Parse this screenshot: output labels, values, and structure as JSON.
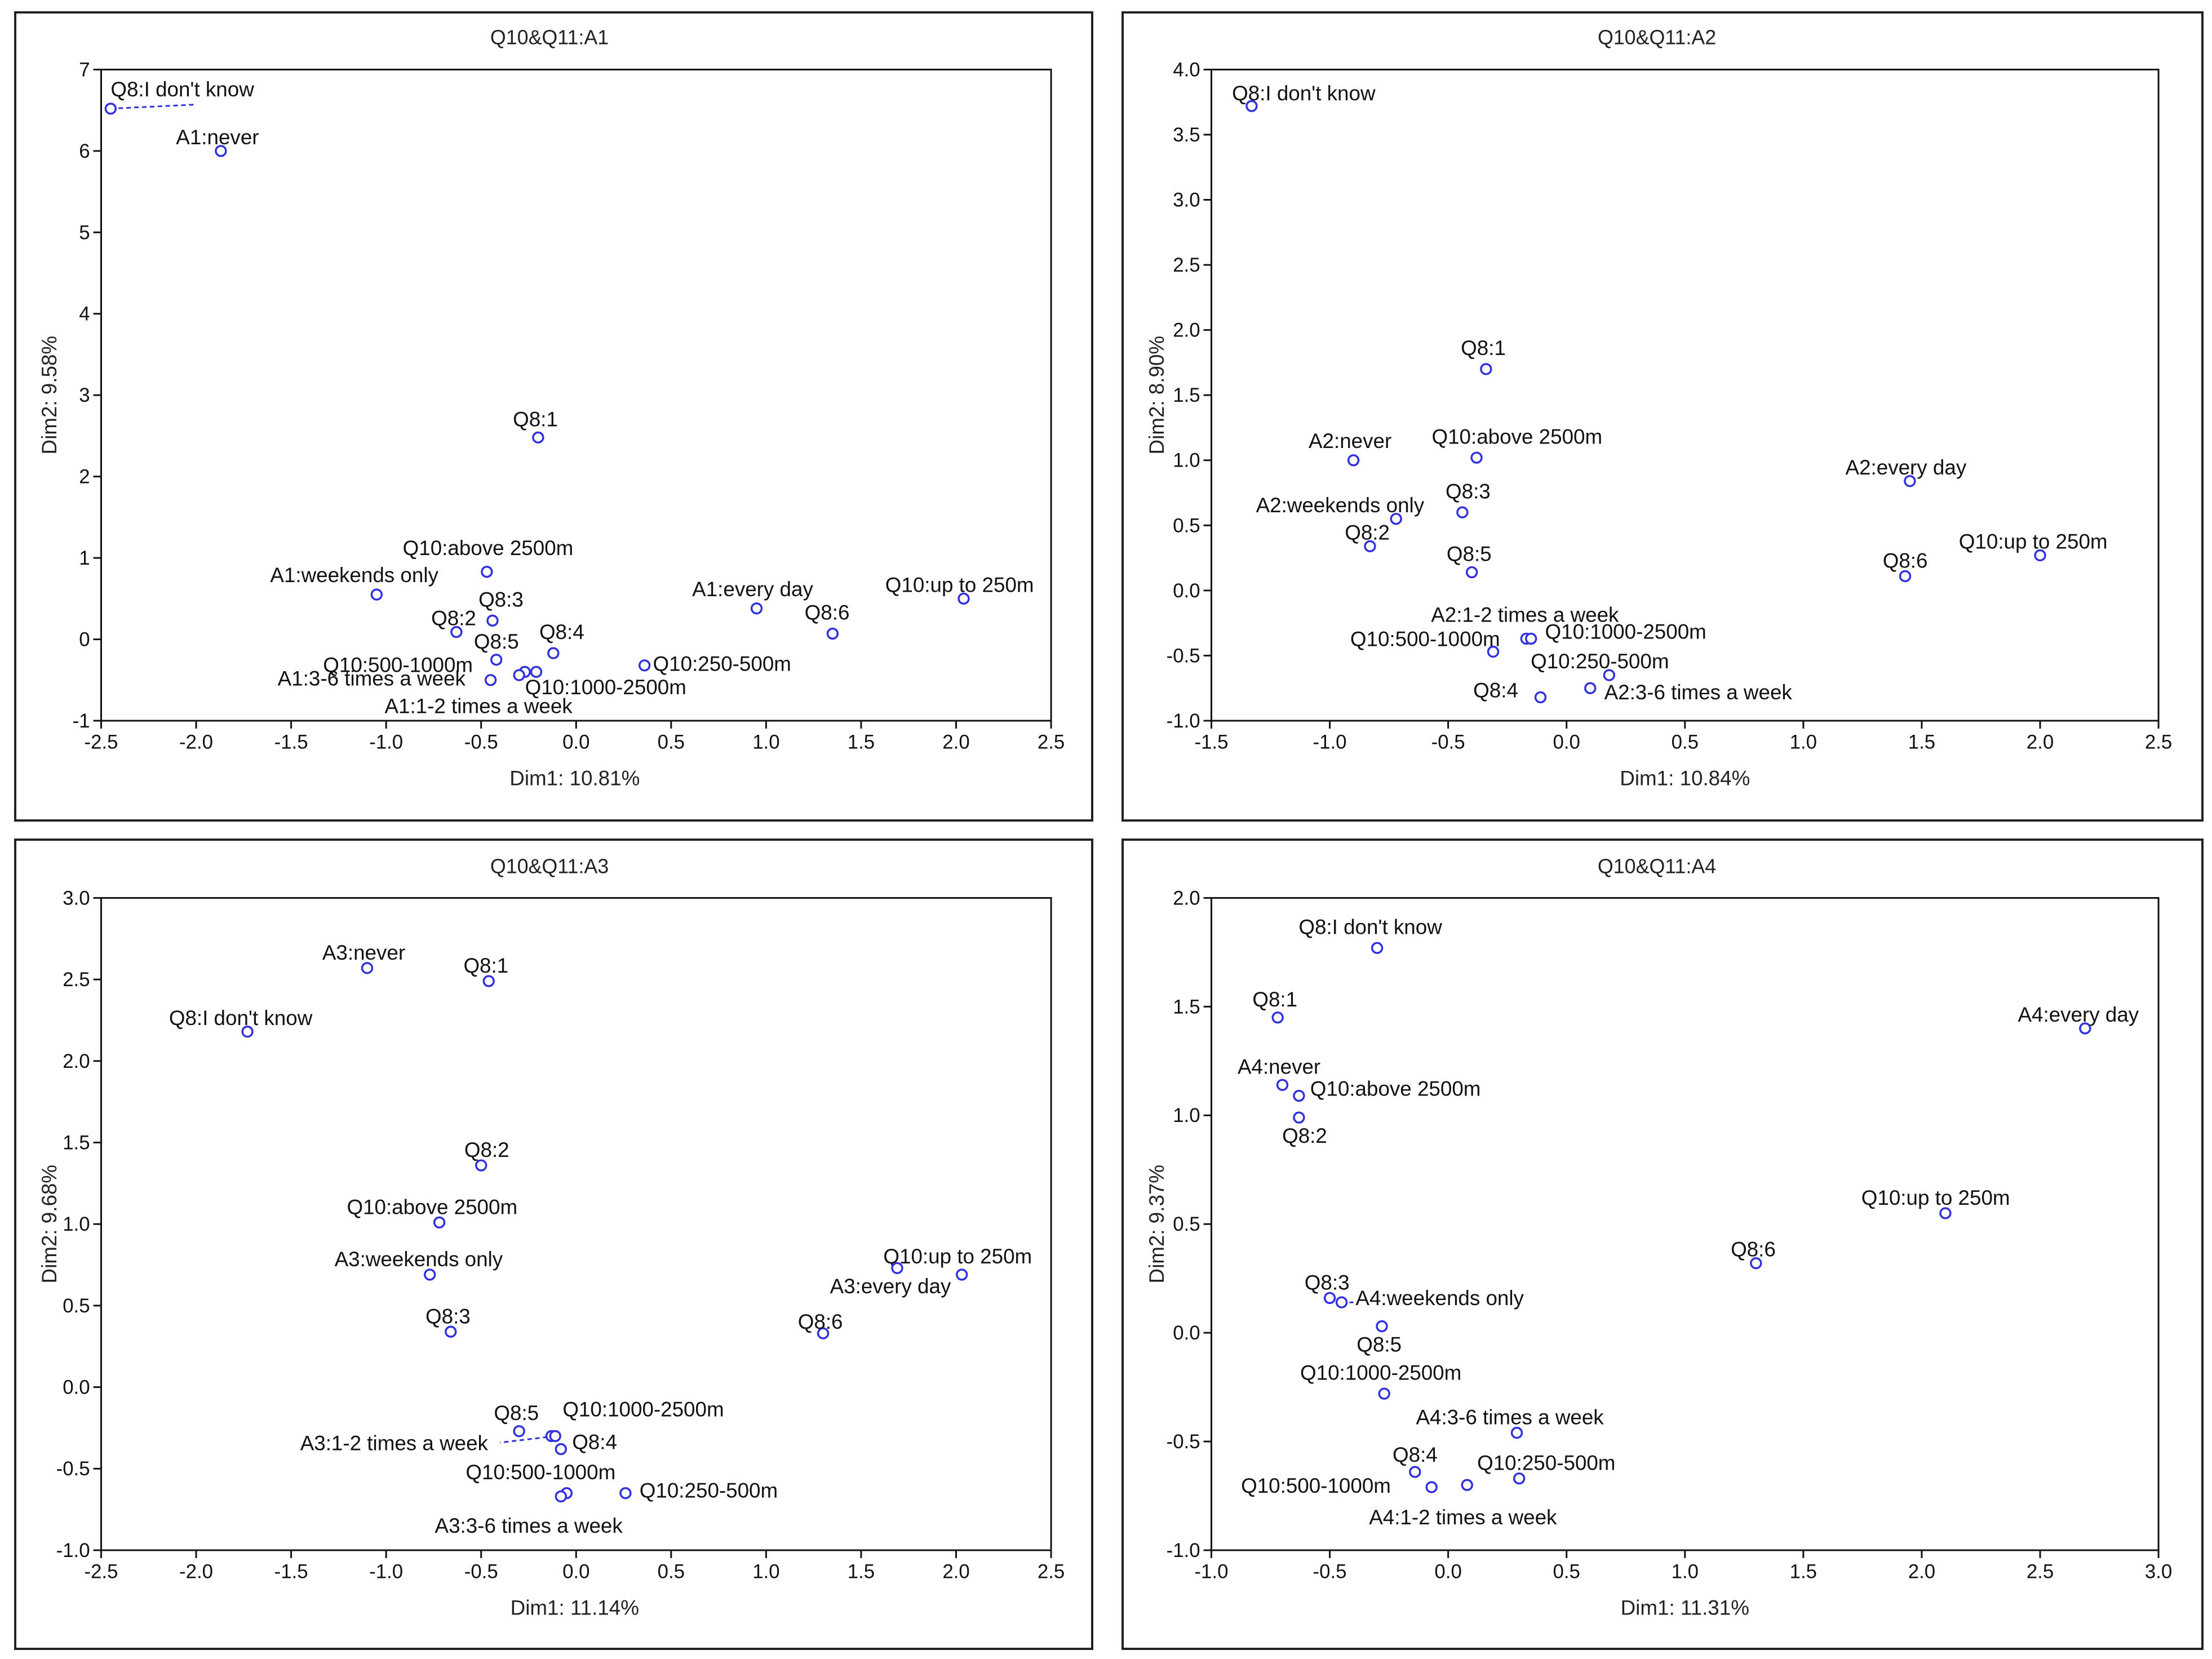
{
  "chart_data": [
    {
      "type": "scatter",
      "title": "Q10&Q11:A1",
      "xlabel": "Dim1: 10.81%",
      "ylabel": "Dim2: 9.58%",
      "xlim": [
        -2.5,
        2.5
      ],
      "ylim": [
        -1,
        7
      ],
      "x_ticks": [
        "-2.5",
        "-2.0",
        "-1.5",
        "-1.0",
        "-0.5",
        "0.0",
        "0.5",
        "1.0",
        "1.5",
        "2.0",
        "2.5"
      ],
      "y_ticks": [
        "-1",
        "0",
        "1",
        "2",
        "3",
        "4",
        "5",
        "6",
        "7"
      ],
      "points": [
        {
          "label": "Q8:I don't know",
          "x": -2.45,
          "y": 6.52
        },
        {
          "label": "A1:never",
          "x": -1.87,
          "y": 6.0
        },
        {
          "label": "Q8:1",
          "x": -0.2,
          "y": 2.48
        },
        {
          "label": "Q10:above 2500m",
          "x": -0.47,
          "y": 0.83
        },
        {
          "label": "A1:weekends only",
          "x": -1.05,
          "y": 0.55
        },
        {
          "label": "Q8:3",
          "x": -0.44,
          "y": 0.23
        },
        {
          "label": "Q8:2",
          "x": -0.63,
          "y": 0.09
        },
        {
          "label": "Q8:5",
          "x": -0.42,
          "y": -0.25
        },
        {
          "label": "Q8:4",
          "x": -0.12,
          "y": -0.17
        },
        {
          "label": "Q10:500-1000m",
          "x": -0.27,
          "y": -0.4
        },
        {
          "label": "A1:3-6 times a week",
          "x": -0.45,
          "y": -0.5
        },
        {
          "label": "Q10:1000-2500m",
          "x": -0.21,
          "y": -0.4
        },
        {
          "label": "A1:1-2 times a week",
          "x": -0.3,
          "y": -0.44
        },
        {
          "label": "Q10:250-500m",
          "x": 0.36,
          "y": -0.32
        },
        {
          "label": "A1:every day",
          "x": 0.95,
          "y": 0.38
        },
        {
          "label": "Q8:6",
          "x": 1.35,
          "y": 0.07
        },
        {
          "label": "Q10:up to 250m",
          "x": 2.04,
          "y": 0.5
        }
      ]
    },
    {
      "type": "scatter",
      "title": "Q10&Q11:A2",
      "xlabel": "Dim1: 10.84%",
      "ylabel": "Dim2: 8.90%",
      "xlim": [
        -1.5,
        2.5
      ],
      "ylim": [
        -1.0,
        4.0
      ],
      "x_ticks": [
        "-1.5",
        "-1.0",
        "-0.5",
        "0.0",
        "0.5",
        "1.0",
        "1.5",
        "2.0",
        "2.5"
      ],
      "y_ticks": [
        "-1.0",
        "-0.5",
        "0.0",
        "0.5",
        "1.0",
        "1.5",
        "2.0",
        "2.5",
        "3.0",
        "3.5",
        "4.0"
      ],
      "points": [
        {
          "label": "Q8:I don't know",
          "x": -1.33,
          "y": 3.72
        },
        {
          "label": "Q8:1",
          "x": -0.34,
          "y": 1.7
        },
        {
          "label": "A2:never",
          "x": -0.9,
          "y": 1.0
        },
        {
          "label": "Q10:above 2500m",
          "x": -0.38,
          "y": 1.02
        },
        {
          "label": "A2:weekends only",
          "x": -0.72,
          "y": 0.55
        },
        {
          "label": "Q8:3",
          "x": -0.44,
          "y": 0.6
        },
        {
          "label": "Q8:2",
          "x": -0.83,
          "y": 0.34
        },
        {
          "label": "Q8:5",
          "x": -0.4,
          "y": 0.14
        },
        {
          "label": "A2:1-2 times a week",
          "x": -0.17,
          "y": -0.37
        },
        {
          "label": "Q10:1000-2500m",
          "x": -0.15,
          "y": -0.37
        },
        {
          "label": "Q10:500-1000m",
          "x": -0.31,
          "y": -0.47
        },
        {
          "label": "Q10:250-500m",
          "x": 0.18,
          "y": -0.65
        },
        {
          "label": "Q8:4",
          "x": -0.11,
          "y": -0.82
        },
        {
          "label": "A2:3-6 times a week",
          "x": 0.1,
          "y": -0.75
        },
        {
          "label": "A2:every day",
          "x": 1.45,
          "y": 0.84
        },
        {
          "label": "Q8:6",
          "x": 1.43,
          "y": 0.11
        },
        {
          "label": "Q10:up to 250m",
          "x": 2.0,
          "y": 0.27
        }
      ]
    },
    {
      "type": "scatter",
      "title": "Q10&Q11:A3",
      "xlabel": "Dim1: 11.14%",
      "ylabel": "Dim2: 9.68%",
      "xlim": [
        -2.5,
        2.5
      ],
      "ylim": [
        -1.0,
        3.0
      ],
      "x_ticks": [
        "-2.5",
        "-2.0",
        "-1.5",
        "-1.0",
        "-0.5",
        "0.0",
        "0.5",
        "1.0",
        "1.5",
        "2.0",
        "2.5"
      ],
      "y_ticks": [
        "-1.0",
        "-0.5",
        "0.0",
        "0.5",
        "1.0",
        "1.5",
        "2.0",
        "2.5",
        "3.0"
      ],
      "points": [
        {
          "label": "A3:never",
          "x": -1.1,
          "y": 2.57
        },
        {
          "label": "Q8:1",
          "x": -0.46,
          "y": 2.49
        },
        {
          "label": "Q8:I don't know",
          "x": -1.73,
          "y": 2.18
        },
        {
          "label": "Q8:2",
          "x": -0.5,
          "y": 1.36
        },
        {
          "label": "Q10:above 2500m",
          "x": -0.72,
          "y": 1.01
        },
        {
          "label": "A3:weekends only",
          "x": -0.77,
          "y": 0.69
        },
        {
          "label": "Q8:3",
          "x": -0.66,
          "y": 0.34
        },
        {
          "label": "Q8:5",
          "x": -0.3,
          "y": -0.27
        },
        {
          "label": "Q10:1000-2500m",
          "x": -0.13,
          "y": -0.3
        },
        {
          "label": "A3:1-2 times a week",
          "x": -0.11,
          "y": -0.3
        },
        {
          "label": "Q8:4",
          "x": -0.08,
          "y": -0.38
        },
        {
          "label": "Q10:500-1000m",
          "x": -0.05,
          "y": -0.65
        },
        {
          "label": "A3:3-6 times a week",
          "x": -0.08,
          "y": -0.67
        },
        {
          "label": "Q10:250-500m",
          "x": 0.26,
          "y": -0.65
        },
        {
          "label": "Q10:up to 250m",
          "x": 2.03,
          "y": 0.69
        },
        {
          "label": "A3:every day",
          "x": 1.69,
          "y": 0.73
        },
        {
          "label": "Q8:6",
          "x": 1.3,
          "y": 0.33
        }
      ]
    },
    {
      "type": "scatter",
      "title": "Q10&Q11:A4",
      "xlabel": "Dim1: 11.31%",
      "ylabel": "Dim2: 9.37%",
      "xlim": [
        -1.0,
        3.0
      ],
      "ylim": [
        -1.0,
        2.0
      ],
      "x_ticks": [
        "-1.0",
        "-0.5",
        "0.0",
        "0.5",
        "1.0",
        "1.5",
        "2.0",
        "2.5",
        "3.0"
      ],
      "y_ticks": [
        "-1.0",
        "-0.5",
        "0.0",
        "0.5",
        "1.0",
        "1.5",
        "2.0"
      ],
      "points": [
        {
          "label": "Q8:I don't know",
          "x": -0.3,
          "y": 1.77
        },
        {
          "label": "Q8:1",
          "x": -0.72,
          "y": 1.45
        },
        {
          "label": "A4:every day",
          "x": 2.69,
          "y": 1.4
        },
        {
          "label": "A4:never",
          "x": -0.7,
          "y": 1.14
        },
        {
          "label": "Q10:above 2500m",
          "x": -0.63,
          "y": 1.09
        },
        {
          "label": "Q8:2",
          "x": -0.63,
          "y": 0.99
        },
        {
          "label": "Q10:up to 250m",
          "x": 2.1,
          "y": 0.55
        },
        {
          "label": "Q8:6",
          "x": 1.3,
          "y": 0.32
        },
        {
          "label": "Q8:3",
          "x": -0.5,
          "y": 0.16
        },
        {
          "label": "A4:weekends only",
          "x": -0.45,
          "y": 0.14
        },
        {
          "label": "Q8:5",
          "x": -0.28,
          "y": 0.03
        },
        {
          "label": "Q10:1000-2500m",
          "x": -0.27,
          "y": -0.28
        },
        {
          "label": "A4:3-6 times a week",
          "x": 0.29,
          "y": -0.46
        },
        {
          "label": "Q8:4",
          "x": -0.14,
          "y": -0.64
        },
        {
          "label": "Q10:250-500m",
          "x": 0.3,
          "y": -0.67
        },
        {
          "label": "Q10:500-1000m",
          "x": -0.07,
          "y": -0.71
        },
        {
          "label": "A4:1-2 times a week",
          "x": 0.08,
          "y": -0.7
        }
      ]
    }
  ]
}
